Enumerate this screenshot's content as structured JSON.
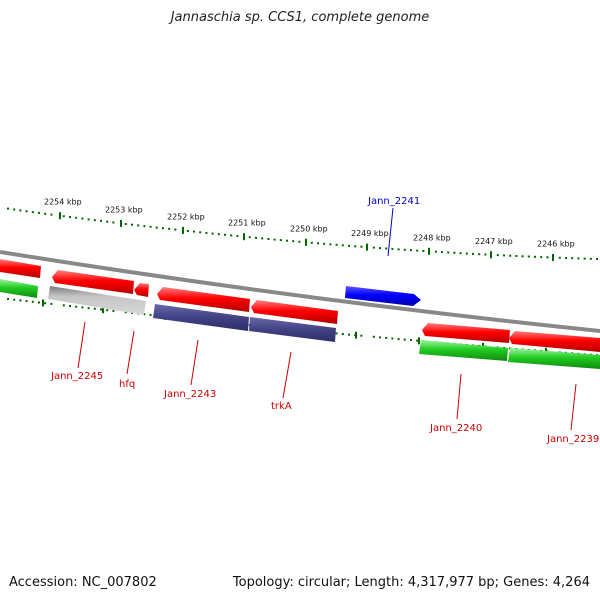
{
  "title": "Jannaschia sp. CCS1, complete genome",
  "footer": {
    "accession": "Accession: NC_007802",
    "summary": "Topology: circular; Length: 4,317,977 bp; Genes: 4,264"
  },
  "scale": {
    "ticks": [
      "2254 kbp",
      "2253 kbp",
      "2252 kbp",
      "2251 kbp",
      "2250 kbp",
      "2249 kbp",
      "2248 kbp",
      "2247 kbp",
      "2246 kbp"
    ],
    "tick_color": "#006600"
  },
  "colors": {
    "cds_forward": "#ff0000",
    "cds_reverse": "#00cc00",
    "highlight": "#0000ff",
    "label": "#cc0000",
    "highlight_label": "#0000cc",
    "backbone": "#888888",
    "gray_gene": "#bbbbbb",
    "navy_gene": "#444488"
  },
  "labels": [
    {
      "id": "jann2245",
      "text": "Jann_2245"
    },
    {
      "id": "hfq",
      "text": "hfq"
    },
    {
      "id": "jann2243",
      "text": "Jann_2243"
    },
    {
      "id": "trka",
      "text": "trkA"
    },
    {
      "id": "jann2240",
      "text": "Jann_2240"
    },
    {
      "id": "jann2239",
      "text": "Jann_2239"
    },
    {
      "id": "jann2241",
      "text": "Jann_2241"
    }
  ]
}
